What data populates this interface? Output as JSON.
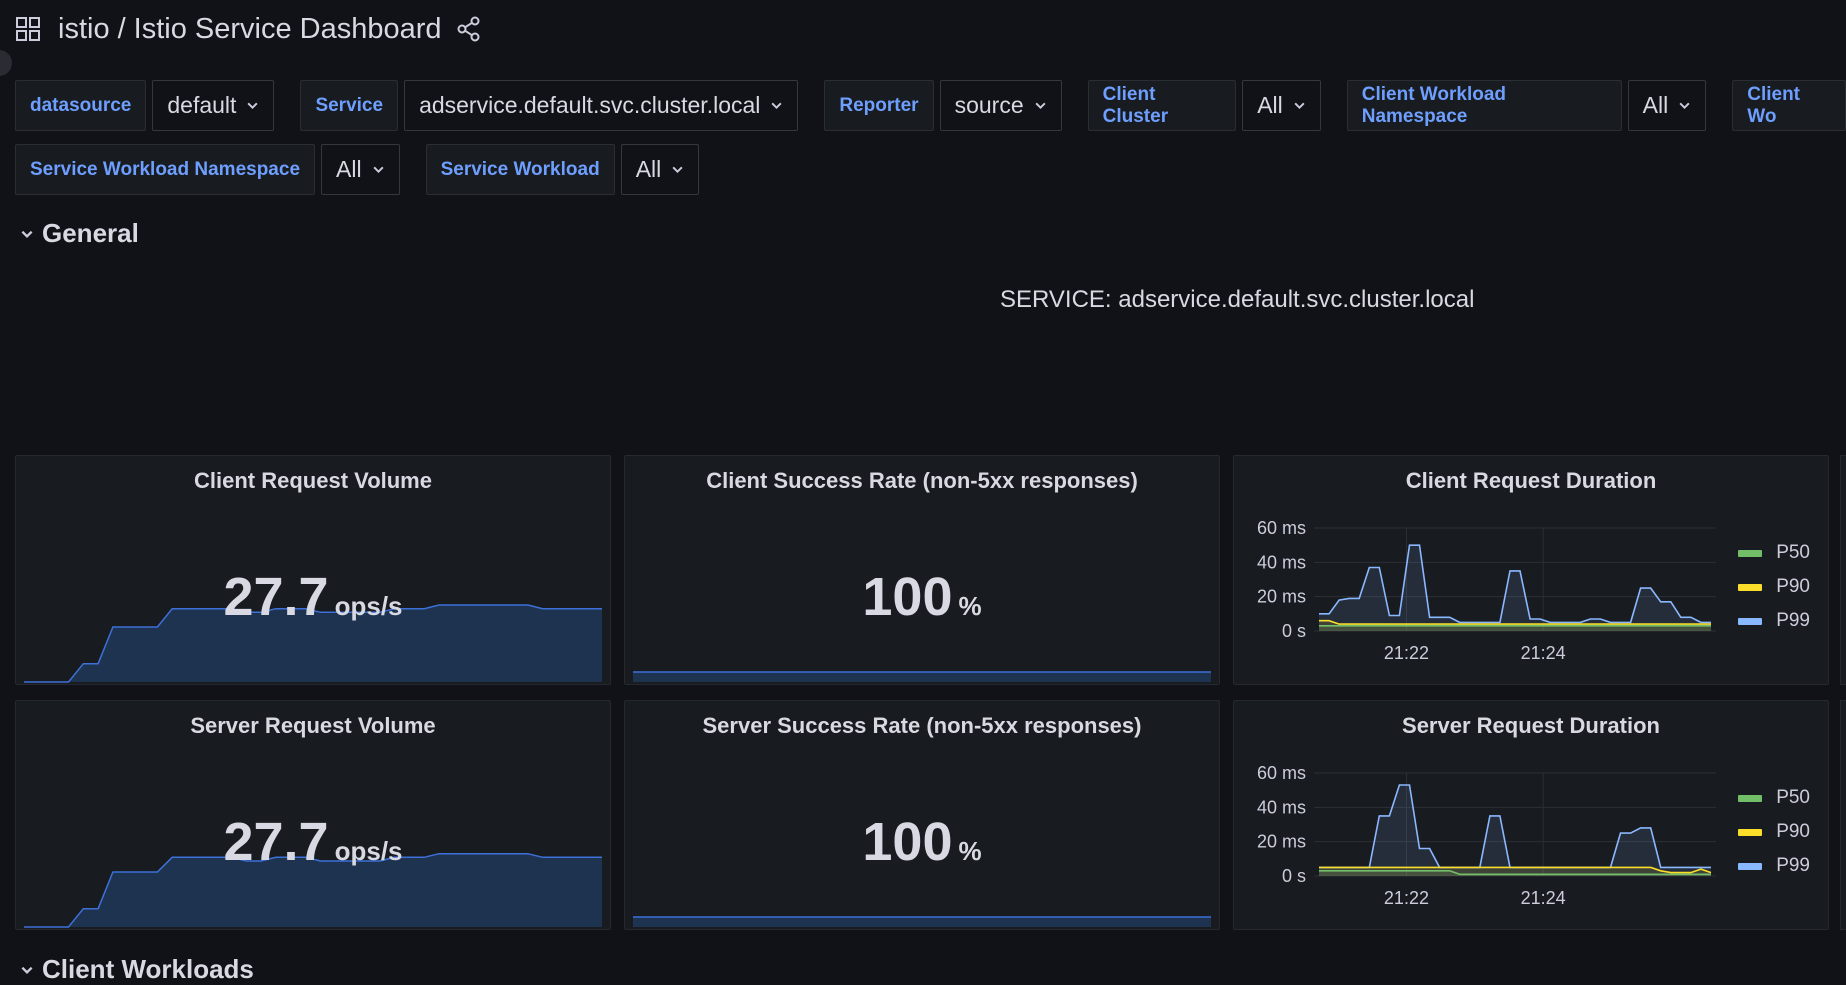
{
  "header": {
    "folder": "istio",
    "separator": "/",
    "title": "Istio Service Dashboard"
  },
  "variables": {
    "row1": [
      {
        "label": "datasource",
        "value": "default"
      },
      {
        "label": "Service",
        "value": "adservice.default.svc.cluster.local"
      },
      {
        "label": "Reporter",
        "value": "source"
      },
      {
        "label": "Client Cluster",
        "value": "All"
      },
      {
        "label": "Client Workload Namespace",
        "value": "All"
      },
      {
        "label": "Client Wo",
        "value": ""
      }
    ],
    "row2": [
      {
        "label": "Service Workload Namespace",
        "value": "All"
      },
      {
        "label": "Service Workload",
        "value": "All"
      }
    ]
  },
  "rows": {
    "general": "General",
    "client_workloads": "Client Workloads"
  },
  "service_text": "SERVICE: adservice.default.svc.cluster.local",
  "panels": {
    "client_volume": {
      "title": "Client Request Volume",
      "value": "27.7",
      "unit": "ops/s"
    },
    "client_success": {
      "title": "Client Success Rate (non-5xx responses)",
      "value": "100",
      "unit": "%"
    },
    "client_duration": {
      "title": "Client Request Duration"
    },
    "server_volume": {
      "title": "Server Request Volume",
      "value": "27.7",
      "unit": "ops/s"
    },
    "server_success": {
      "title": "Server Success Rate (non-5xx responses)",
      "value": "100",
      "unit": "%"
    },
    "server_duration": {
      "title": "Server Request Duration"
    }
  },
  "colors": {
    "background": "#111217",
    "panel": "#181b1f",
    "label_blue": "#6e9fff",
    "spark_line": "#3d71d9",
    "spark_fill": "#1d3350",
    "p50": "#73bf69",
    "p90": "#fade2a",
    "p99": "#8ab8ff"
  },
  "chart_data": [
    {
      "type": "line",
      "title": "Client Request Duration",
      "ylabel": "",
      "y_ticks": [
        "0 s",
        "20 ms",
        "40 ms",
        "60 ms"
      ],
      "x_ticks": [
        "21:22",
        "21:24"
      ],
      "ylim": [
        0,
        60
      ],
      "legend_position": "right",
      "series": [
        {
          "name": "P50",
          "color": "#73bf69",
          "values": [
            3,
            3,
            3,
            3,
            3,
            3,
            3,
            3,
            3,
            3,
            3,
            3,
            3,
            3,
            3,
            3,
            3,
            3,
            3,
            3,
            3,
            3,
            3,
            3,
            3,
            3,
            3,
            3,
            3,
            3,
            3,
            3,
            3,
            3,
            3,
            3,
            3,
            3,
            3,
            3
          ]
        },
        {
          "name": "P90",
          "color": "#fade2a",
          "values": [
            6,
            6,
            4,
            4,
            4,
            4,
            4,
            4,
            4,
            4,
            4,
            4,
            4,
            4,
            4,
            4,
            4,
            4,
            4,
            4,
            4,
            4,
            4,
            4,
            4,
            4,
            4,
            4,
            4,
            4,
            4,
            4,
            4,
            4,
            4,
            4,
            4,
            4,
            4,
            4
          ]
        },
        {
          "name": "P99",
          "color": "#8ab8ff",
          "values": [
            10,
            10,
            18,
            19,
            19,
            37,
            37,
            9,
            9,
            50,
            50,
            8,
            8,
            8,
            5,
            5,
            5,
            5,
            5,
            35,
            35,
            7,
            7,
            5,
            5,
            5,
            5,
            7,
            7,
            5,
            5,
            5,
            25,
            25,
            17,
            17,
            8,
            8,
            5,
            5
          ]
        }
      ]
    },
    {
      "type": "line",
      "title": "Server Request Duration",
      "ylabel": "",
      "y_ticks": [
        "0 s",
        "20 ms",
        "40 ms",
        "60 ms"
      ],
      "x_ticks": [
        "21:22",
        "21:24"
      ],
      "ylim": [
        0,
        60
      ],
      "legend_position": "right",
      "series": [
        {
          "name": "P50",
          "color": "#73bf69",
          "values": [
            3,
            3,
            3,
            3,
            3,
            3,
            3,
            3,
            3,
            3,
            3,
            3,
            3,
            3,
            1,
            1,
            1,
            1,
            1,
            1,
            1,
            1,
            1,
            1,
            1,
            1,
            1,
            1,
            1,
            1,
            1,
            1,
            1,
            1,
            1,
            1,
            1,
            1,
            1,
            1
          ]
        },
        {
          "name": "P90",
          "color": "#fade2a",
          "values": [
            5,
            5,
            5,
            5,
            5,
            5,
            5,
            5,
            5,
            5,
            5,
            5,
            5,
            5,
            5,
            5,
            5,
            5,
            5,
            5,
            5,
            5,
            5,
            5,
            5,
            5,
            5,
            5,
            5,
            5,
            5,
            5,
            5,
            5,
            3,
            2,
            2,
            2,
            4,
            2
          ]
        },
        {
          "name": "P99",
          "color": "#8ab8ff",
          "values": [
            5,
            5,
            5,
            5,
            5,
            5,
            35,
            35,
            53,
            53,
            16,
            16,
            5,
            5,
            5,
            5,
            5,
            35,
            35,
            5,
            5,
            5,
            5,
            5,
            5,
            5,
            5,
            5,
            5,
            5,
            25,
            25,
            28,
            28,
            5,
            5,
            5,
            5,
            5,
            5
          ]
        }
      ]
    }
  ],
  "sparklines": {
    "client_volume": [
      0,
      0,
      0,
      0,
      5,
      5,
      15,
      15,
      15,
      15,
      20,
      20,
      20,
      20,
      20,
      19,
      19,
      20,
      20,
      20,
      19,
      19,
      19,
      19,
      19,
      20,
      20,
      20,
      21,
      21,
      21,
      21,
      21,
      21,
      21,
      20,
      20,
      20,
      20,
      20
    ],
    "server_volume": [
      0,
      0,
      0,
      0,
      5,
      5,
      15,
      15,
      15,
      15,
      19,
      19,
      19,
      19,
      19,
      18,
      18,
      19,
      19,
      19,
      18,
      18,
      18,
      18,
      18,
      19,
      19,
      19,
      20,
      20,
      20,
      20,
      20,
      20,
      20,
      19,
      19,
      19,
      19,
      19
    ],
    "client_success": [
      100,
      100,
      100,
      100,
      100,
      100,
      100,
      100,
      100,
      100
    ],
    "server_success": [
      100,
      100,
      100,
      100,
      100,
      100,
      100,
      100,
      100,
      100
    ]
  }
}
